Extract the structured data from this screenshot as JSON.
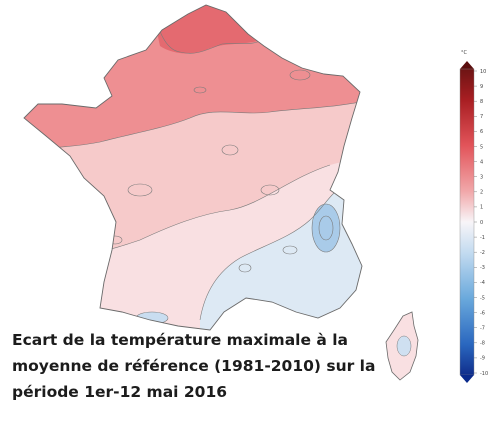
{
  "caption": {
    "line1": "Ecart de la température maximale à la",
    "line2": "moyenne de référence (1981-2010) sur la",
    "line3": "période 1er-12 mai 2016"
  },
  "colorbar": {
    "unit": "°C",
    "ticks": [
      "10",
      "9",
      "8",
      "7",
      "6",
      "5",
      "4",
      "3",
      "2",
      "1",
      "0",
      "-1",
      "-2",
      "-3",
      "-4",
      "-5",
      "-6",
      "-7",
      "-8",
      "-9",
      "-10"
    ],
    "colors": {
      "max": "#5a0d0d",
      "warm_dark": "#b3232a",
      "warm": "#e3585c",
      "warm_light": "#f3b0b0",
      "neutral": "#f7f5f8",
      "cool_light": "#c6dcf0",
      "cool": "#6aa9dc",
      "cool_dark": "#1f5fb4",
      "min": "#0a2a8c"
    }
  },
  "map_colors": {
    "north_band": "#ee8f92",
    "north_peak": "#e46a70",
    "center_band": "#f6caca",
    "south_band": "#f9e0e2",
    "cool_zone": "#dde9f4",
    "cold_spot": "#a9cbe9",
    "contour": "#7a7a7a"
  }
}
